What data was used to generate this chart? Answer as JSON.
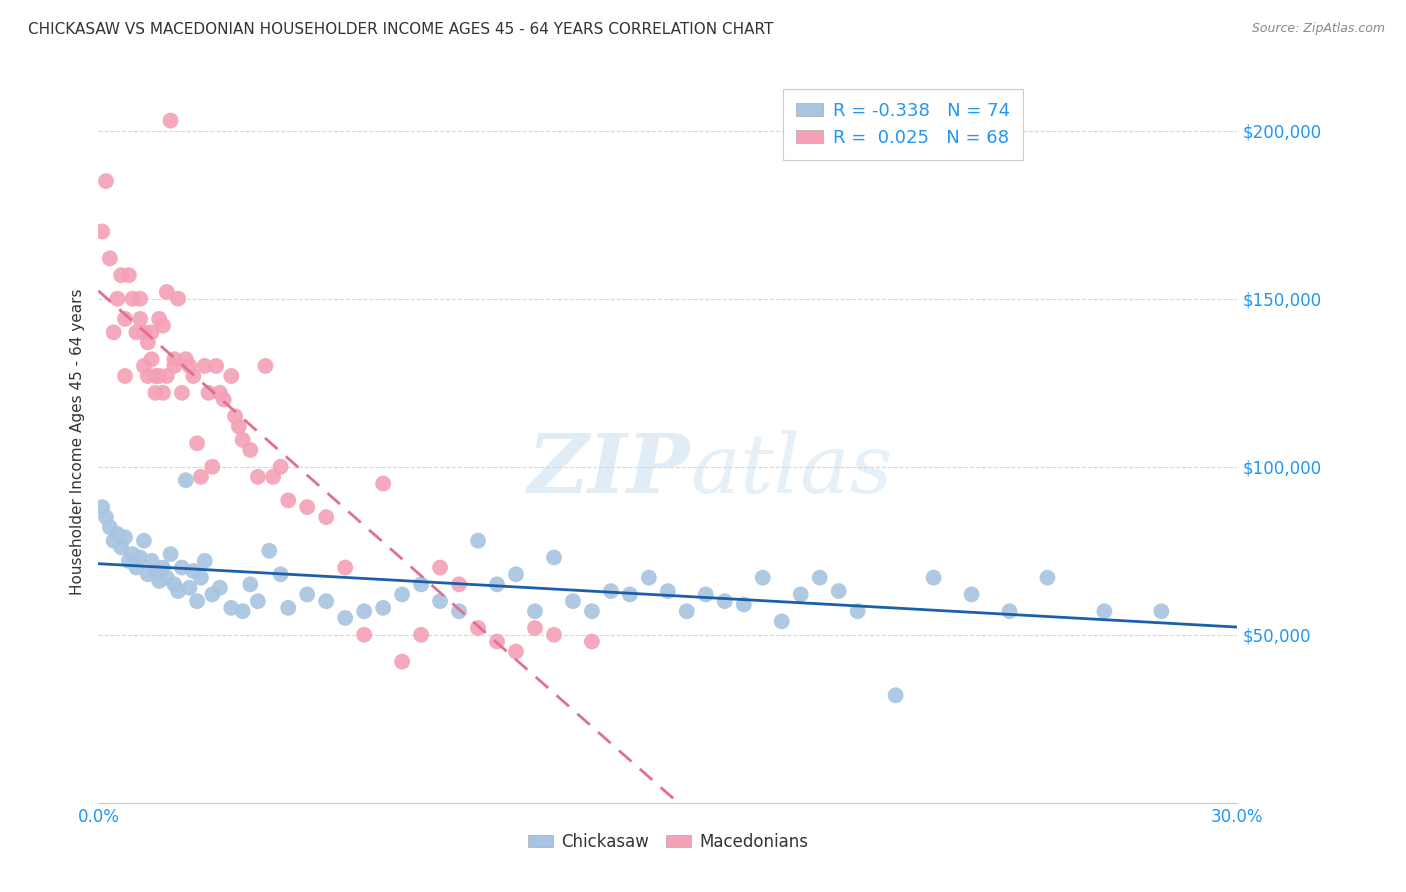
{
  "title": "CHICKASAW VS MACEDONIAN HOUSEHOLDER INCOME AGES 45 - 64 YEARS CORRELATION CHART",
  "source": "Source: ZipAtlas.com",
  "ylabel": "Householder Income Ages 45 - 64 years",
  "watermark": "ZIPatlas",
  "chickasaw_R": -0.338,
  "chickasaw_N": 74,
  "macedonian_R": 0.025,
  "macedonian_N": 68,
  "chickasaw_color": "#a8c4e0",
  "macedonian_color": "#f4a0b5",
  "chickasaw_line_color": "#1a5fa8",
  "macedonian_line_color": "#e07090",
  "ylim": [
    0,
    215000
  ],
  "xlim": [
    0.0,
    0.3
  ],
  "chickasaw_x": [
    0.001,
    0.002,
    0.003,
    0.004,
    0.005,
    0.006,
    0.007,
    0.008,
    0.009,
    0.01,
    0.011,
    0.012,
    0.013,
    0.014,
    0.015,
    0.016,
    0.017,
    0.018,
    0.019,
    0.02,
    0.021,
    0.022,
    0.023,
    0.024,
    0.025,
    0.026,
    0.027,
    0.028,
    0.03,
    0.032,
    0.035,
    0.038,
    0.04,
    0.042,
    0.045,
    0.048,
    0.05,
    0.055,
    0.06,
    0.065,
    0.07,
    0.075,
    0.08,
    0.085,
    0.09,
    0.095,
    0.1,
    0.105,
    0.11,
    0.115,
    0.12,
    0.125,
    0.13,
    0.135,
    0.14,
    0.145,
    0.15,
    0.155,
    0.16,
    0.165,
    0.17,
    0.175,
    0.18,
    0.185,
    0.19,
    0.195,
    0.2,
    0.21,
    0.22,
    0.23,
    0.24,
    0.25,
    0.265,
    0.28
  ],
  "chickasaw_y": [
    88000,
    85000,
    82000,
    78000,
    80000,
    76000,
    79000,
    72000,
    74000,
    70000,
    73000,
    78000,
    68000,
    72000,
    69000,
    66000,
    70000,
    67000,
    74000,
    65000,
    63000,
    70000,
    96000,
    64000,
    69000,
    60000,
    67000,
    72000,
    62000,
    64000,
    58000,
    57000,
    65000,
    60000,
    75000,
    68000,
    58000,
    62000,
    60000,
    55000,
    57000,
    58000,
    62000,
    65000,
    60000,
    57000,
    78000,
    65000,
    68000,
    57000,
    73000,
    60000,
    57000,
    63000,
    62000,
    67000,
    63000,
    57000,
    62000,
    60000,
    59000,
    67000,
    54000,
    62000,
    67000,
    63000,
    57000,
    32000,
    67000,
    62000,
    57000,
    67000,
    57000,
    57000
  ],
  "macedonian_x": [
    0.001,
    0.002,
    0.003,
    0.004,
    0.005,
    0.006,
    0.007,
    0.007,
    0.008,
    0.009,
    0.01,
    0.011,
    0.011,
    0.012,
    0.012,
    0.013,
    0.013,
    0.014,
    0.014,
    0.015,
    0.015,
    0.016,
    0.016,
    0.017,
    0.017,
    0.018,
    0.018,
    0.019,
    0.02,
    0.02,
    0.021,
    0.022,
    0.023,
    0.024,
    0.025,
    0.026,
    0.027,
    0.028,
    0.029,
    0.03,
    0.031,
    0.032,
    0.033,
    0.035,
    0.036,
    0.037,
    0.038,
    0.04,
    0.042,
    0.044,
    0.046,
    0.048,
    0.05,
    0.055,
    0.06,
    0.065,
    0.07,
    0.075,
    0.08,
    0.085,
    0.09,
    0.095,
    0.1,
    0.105,
    0.11,
    0.115,
    0.12,
    0.13
  ],
  "macedonian_y": [
    170000,
    185000,
    162000,
    140000,
    150000,
    157000,
    127000,
    144000,
    157000,
    150000,
    140000,
    144000,
    150000,
    130000,
    140000,
    127000,
    137000,
    132000,
    140000,
    127000,
    122000,
    144000,
    127000,
    142000,
    122000,
    152000,
    127000,
    203000,
    132000,
    130000,
    150000,
    122000,
    132000,
    130000,
    127000,
    107000,
    97000,
    130000,
    122000,
    100000,
    130000,
    122000,
    120000,
    127000,
    115000,
    112000,
    108000,
    105000,
    97000,
    130000,
    97000,
    100000,
    90000,
    88000,
    85000,
    70000,
    50000,
    95000,
    42000,
    50000,
    70000,
    65000,
    52000,
    48000,
    45000,
    52000,
    50000,
    48000
  ]
}
